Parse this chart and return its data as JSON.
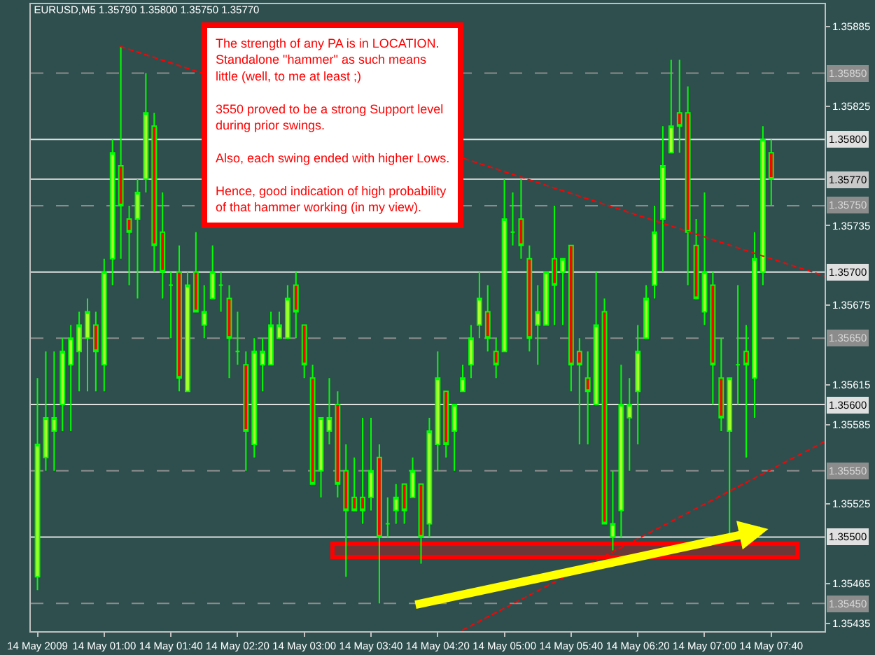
{
  "chart_data": {
    "type": "candlestick",
    "title": "EURUSD,M5 1.35790 1.35800 1.35750 1.35770",
    "x": [
      "2009-05-14T00:20",
      "2009-05-14T00:25",
      "2009-05-14T00:30",
      "2009-05-14T00:35",
      "2009-05-14T00:40",
      "2009-05-14T00:45",
      "2009-05-14T00:50",
      "2009-05-14T00:55",
      "2009-05-14T01:00",
      "2009-05-14T01:05",
      "2009-05-14T01:10",
      "2009-05-14T01:15",
      "2009-05-14T01:20",
      "2009-05-14T01:25",
      "2009-05-14T01:30",
      "2009-05-14T01:35",
      "2009-05-14T01:40",
      "2009-05-14T01:45",
      "2009-05-14T01:50",
      "2009-05-14T01:55",
      "2009-05-14T02:00",
      "2009-05-14T02:05",
      "2009-05-14T02:10",
      "2009-05-14T02:15",
      "2009-05-14T02:20",
      "2009-05-14T02:25",
      "2009-05-14T02:30",
      "2009-05-14T02:35",
      "2009-05-14T02:40",
      "2009-05-14T02:45",
      "2009-05-14T02:50",
      "2009-05-14T02:55",
      "2009-05-14T03:00",
      "2009-05-14T03:05",
      "2009-05-14T03:10",
      "2009-05-14T03:15",
      "2009-05-14T03:20",
      "2009-05-14T03:25",
      "2009-05-14T03:30",
      "2009-05-14T03:35",
      "2009-05-14T03:40",
      "2009-05-14T03:45",
      "2009-05-14T03:50",
      "2009-05-14T03:55",
      "2009-05-14T04:00",
      "2009-05-14T04:05",
      "2009-05-14T04:10",
      "2009-05-14T04:15",
      "2009-05-14T04:20",
      "2009-05-14T04:25",
      "2009-05-14T04:30",
      "2009-05-14T04:35",
      "2009-05-14T04:40",
      "2009-05-14T04:45",
      "2009-05-14T04:50",
      "2009-05-14T04:55",
      "2009-05-14T05:00",
      "2009-05-14T05:05",
      "2009-05-14T05:10",
      "2009-05-14T05:15",
      "2009-05-14T05:20",
      "2009-05-14T05:25",
      "2009-05-14T05:30",
      "2009-05-14T05:35",
      "2009-05-14T05:40",
      "2009-05-14T05:45",
      "2009-05-14T05:50",
      "2009-05-14T05:55",
      "2009-05-14T06:00",
      "2009-05-14T06:05",
      "2009-05-14T06:10",
      "2009-05-14T06:15",
      "2009-05-14T06:20",
      "2009-05-14T06:25",
      "2009-05-14T06:30",
      "2009-05-14T06:35",
      "2009-05-14T06:40",
      "2009-05-14T06:45",
      "2009-05-14T06:50",
      "2009-05-14T06:55",
      "2009-05-14T07:00",
      "2009-05-14T07:05",
      "2009-05-14T07:10",
      "2009-05-14T07:15",
      "2009-05-14T07:20",
      "2009-05-14T07:25",
      "2009-05-14T07:30",
      "2009-05-14T07:35",
      "2009-05-14T07:40"
    ],
    "series": [
      {
        "color": "#00ff00",
        "colors": [
          "#adff2f",
          "#adff2f",
          "#adff2f",
          "#adff2f",
          "#adff2f",
          "#adff2f",
          "#adff2f",
          "#ff0000",
          "#adff2f",
          "#adff2f",
          "#ff0000",
          "#ff0000",
          "#adff2f",
          "#adff2f",
          "#ff0000",
          "#ff0000",
          "#00ff00",
          "#ff0000",
          "#adff2f",
          "#ff0000",
          "#adff2f",
          "#adff2f",
          "#00ff00",
          "#ff0000",
          "#00ff00",
          "#ff0000",
          "#adff2f",
          "#adff2f",
          "#adff2f",
          "#adff2f",
          "#adff2f",
          "#ff0000",
          "#ff0000",
          "#ff0000",
          "#adff2f",
          "#adff2f",
          "#ff0000",
          "#ff0000",
          "#ff0000",
          "#ff0000",
          "#adff2f",
          "#ff0000",
          "#00ff00",
          "#adff2f",
          "#ff0000",
          "#adff2f",
          "#ff0000",
          "#adff2f",
          "#adff2f",
          "#ff0000",
          "#adff2f",
          "#adff2f",
          "#adff2f",
          "#adff2f",
          "#ff0000",
          "#ff0000",
          "#adff2f",
          "#00ff00",
          "#ff0000",
          "#ff0000",
          "#adff2f",
          "#adff2f",
          "#ff0000",
          "#adff2f",
          "#ff0000",
          "#ff0000",
          "#ff0000",
          "#adff2f",
          "#ff0000",
          "#adff2f",
          "#adff2f",
          "#adff2f",
          "#adff2f",
          "#adff2f",
          "#adff2f",
          "#adff2f",
          "#adff2f",
          "#ff0000",
          "#ff0000",
          "#ff0000",
          "#adff2f",
          "#ff0000",
          "#ff0000",
          "#adff2f",
          "#00ff00",
          "#ff0000",
          "#adff2f",
          "#adff2f",
          "#ff0000"
        ],
        "ohlc": [
          [
            1.3547,
            1.3562,
            1.3546,
            1.3557
          ],
          [
            1.3556,
            1.3564,
            1.3555,
            1.3559
          ],
          [
            1.3558,
            1.3564,
            1.3555,
            1.3559
          ],
          [
            1.356,
            1.3565,
            1.3558,
            1.3564
          ],
          [
            1.3563,
            1.3566,
            1.3558,
            1.3565
          ],
          [
            1.3564,
            1.3567,
            1.3561,
            1.3566
          ],
          [
            1.3565,
            1.3568,
            1.3561,
            1.3567
          ],
          [
            1.3566,
            1.3567,
            1.3561,
            1.3564
          ],
          [
            1.3563,
            1.3571,
            1.3561,
            1.357
          ],
          [
            1.3571,
            1.358,
            1.3569,
            1.3579
          ],
          [
            1.3578,
            1.3587,
            1.3571,
            1.3575
          ],
          [
            1.3574,
            1.3575,
            1.3569,
            1.3573
          ],
          [
            1.3574,
            1.3577,
            1.3568,
            1.3576
          ],
          [
            1.3577,
            1.3585,
            1.3576,
            1.3582
          ],
          [
            1.3581,
            1.3582,
            1.357,
            1.3572
          ],
          [
            1.3573,
            1.3576,
            1.3568,
            1.357
          ],
          [
            1.3569,
            1.357,
            1.3565,
            1.3569
          ],
          [
            1.357,
            1.3572,
            1.3561,
            1.3562
          ],
          [
            1.3561,
            1.357,
            1.3561,
            1.3569
          ],
          [
            1.357,
            1.3573,
            1.3567,
            1.3567
          ],
          [
            1.3566,
            1.3569,
            1.3565,
            1.3567
          ],
          [
            1.3568,
            1.3572,
            1.3568,
            1.357
          ],
          [
            1.3569,
            1.357,
            1.3567,
            1.3569
          ],
          [
            1.3568,
            1.3569,
            1.3562,
            1.3565
          ],
          [
            1.3564,
            1.3567,
            1.3563,
            1.3564
          ],
          [
            1.3563,
            1.3564,
            1.3555,
            1.3558
          ],
          [
            1.3557,
            1.3565,
            1.3556,
            1.3564
          ],
          [
            1.3563,
            1.3565,
            1.3561,
            1.3564
          ],
          [
            1.3563,
            1.3567,
            1.3563,
            1.3566
          ],
          [
            1.3565,
            1.3567,
            1.3565,
            1.3566
          ],
          [
            1.3565,
            1.3569,
            1.3565,
            1.3568
          ],
          [
            1.3569,
            1.357,
            1.3565,
            1.3567
          ],
          [
            1.3566,
            1.3566,
            1.3562,
            1.3563
          ],
          [
            1.3562,
            1.3563,
            1.3554,
            1.3554
          ],
          [
            1.3555,
            1.3559,
            1.3553,
            1.3559
          ],
          [
            1.3558,
            1.3562,
            1.3557,
            1.3559
          ],
          [
            1.356,
            1.3561,
            1.3553,
            1.3554
          ],
          [
            1.3555,
            1.3557,
            1.3547,
            1.3552
          ],
          [
            1.3553,
            1.3556,
            1.3552,
            1.3552
          ],
          [
            1.3553,
            1.3559,
            1.3551,
            1.3552
          ],
          [
            1.3553,
            1.3559,
            1.3552,
            1.3555
          ],
          [
            1.3556,
            1.3557,
            1.3545,
            1.355
          ],
          [
            1.3551,
            1.3553,
            1.355,
            1.3551
          ],
          [
            1.3552,
            1.3554,
            1.3551,
            1.3553
          ],
          [
            1.3554,
            1.3554,
            1.3551,
            1.3552
          ],
          [
            1.3553,
            1.3556,
            1.3553,
            1.3555
          ],
          [
            1.3554,
            1.3554,
            1.3548,
            1.355
          ],
          [
            1.3551,
            1.3559,
            1.355,
            1.3558
          ],
          [
            1.3557,
            1.3564,
            1.3555,
            1.3562
          ],
          [
            1.3561,
            1.3561,
            1.3556,
            1.3557
          ],
          [
            1.3558,
            1.356,
            1.3555,
            1.356
          ],
          [
            1.3561,
            1.3563,
            1.3561,
            1.3562
          ],
          [
            1.3563,
            1.3566,
            1.3562,
            1.3565
          ],
          [
            1.3566,
            1.357,
            1.3565,
            1.3568
          ],
          [
            1.3567,
            1.3569,
            1.3564,
            1.3565
          ],
          [
            1.3564,
            1.3565,
            1.3562,
            1.3563
          ],
          [
            1.3564,
            1.3577,
            1.3564,
            1.3574
          ],
          [
            1.3573,
            1.3576,
            1.3572,
            1.3573
          ],
          [
            1.3574,
            1.3577,
            1.3571,
            1.3572
          ],
          [
            1.3571,
            1.3572,
            1.3564,
            1.3565
          ],
          [
            1.3566,
            1.3569,
            1.3563,
            1.3567
          ],
          [
            1.3566,
            1.357,
            1.3566,
            1.357
          ],
          [
            1.3571,
            1.3575,
            1.3566,
            1.3569
          ],
          [
            1.357,
            1.3571,
            1.3566,
            1.3571
          ],
          [
            1.3572,
            1.3572,
            1.3561,
            1.3563
          ],
          [
            1.3564,
            1.3565,
            1.3557,
            1.3563
          ],
          [
            1.3562,
            1.3564,
            1.3557,
            1.3561
          ],
          [
            1.356,
            1.357,
            1.356,
            1.3566
          ],
          [
            1.3567,
            1.3568,
            1.3551,
            1.3551
          ],
          [
            1.355,
            1.3555,
            1.3549,
            1.3551
          ],
          [
            1.3552,
            1.3563,
            1.355,
            1.356
          ],
          [
            1.3559,
            1.3562,
            1.3555,
            1.356
          ],
          [
            1.3561,
            1.3566,
            1.3557,
            1.3564
          ],
          [
            1.3565,
            1.3569,
            1.3565,
            1.3568
          ],
          [
            1.3569,
            1.3575,
            1.3568,
            1.3573
          ],
          [
            1.3574,
            1.3581,
            1.357,
            1.3578
          ],
          [
            1.3579,
            1.3586,
            1.3579,
            1.3581
          ],
          [
            1.3582,
            1.3586,
            1.3579,
            1.3581
          ],
          [
            1.3582,
            1.3584,
            1.3569,
            1.3573
          ],
          [
            1.3572,
            1.3574,
            1.3568,
            1.3568
          ],
          [
            1.3567,
            1.3576,
            1.3566,
            1.357
          ],
          [
            1.3569,
            1.357,
            1.356,
            1.3563
          ],
          [
            1.3562,
            1.3565,
            1.3558,
            1.3559
          ],
          [
            1.3558,
            1.3562,
            1.355,
            1.3562
          ],
          [
            1.3563,
            1.3569,
            1.356,
            1.3563
          ],
          [
            1.3564,
            1.3566,
            1.3556,
            1.3563
          ],
          [
            1.3562,
            1.3573,
            1.3559,
            1.3571
          ],
          [
            1.357,
            1.3581,
            1.3569,
            1.358
          ],
          [
            1.3579,
            1.358,
            1.3575,
            1.3577
          ]
        ]
      },
      {
        "type": "line",
        "color": "#ff0000",
        "line_style": "dotted",
        "x": [
          "2009-05-14T01:10",
          "2009-05-14T07:40",
          "2009-05-14T08:12"
        ],
        "values": [
          1.3587,
          1.3571,
          1.35697
        ]
      },
      {
        "type": "line",
        "color": "#ff0000",
        "line_style": "dotted",
        "x": [
          "2009-05-14T04:35",
          "2009-05-14T08:12"
        ],
        "values": [
          1.3543,
          1.35572
        ]
      }
    ],
    "xlim": [
      "2009-05-14T00:16",
      "2009-05-14T08:12"
    ],
    "xticks": [
      {
        "value": "2009-05-14T00:20",
        "label": "14 May 2009"
      },
      {
        "value": "2009-05-14T01:00",
        "label": "14 May 01:00"
      },
      {
        "value": "2009-05-14T01:40",
        "label": "14 May 01:40"
      },
      {
        "value": "2009-05-14T02:20",
        "label": "14 May 02:20"
      },
      {
        "value": "2009-05-14T03:00",
        "label": "14 May 03:00"
      },
      {
        "value": "2009-05-14T03:40",
        "label": "14 May 03:40"
      },
      {
        "value": "2009-05-14T04:20",
        "label": "14 May 04:20"
      },
      {
        "value": "2009-05-14T05:00",
        "label": "14 May 05:00"
      },
      {
        "value": "2009-05-14T05:40",
        "label": "14 May 05:40"
      },
      {
        "value": "2009-05-14T06:20",
        "label": "14 May 06:20"
      },
      {
        "value": "2009-05-14T07:00",
        "label": "14 May 07:00"
      },
      {
        "value": "2009-05-14T07:40",
        "label": "14 May 07:40"
      }
    ],
    "ylim": [
      1.35429,
      1.35902
    ],
    "yticks": [
      1.35885,
      1.35825,
      1.35735,
      1.35675,
      1.35615,
      1.35585,
      1.35525,
      1.35465,
      1.35435
    ],
    "ref_lines": [
      {
        "axis": "y",
        "value": 1.3585,
        "label": "1.35850",
        "color": "#8c8c8c",
        "line_style": "dashed"
      },
      {
        "axis": "y",
        "value": 1.358,
        "label": "1.35800",
        "color": "#e0e0e0",
        "line_style": "solid"
      },
      {
        "axis": "y",
        "value": 1.3577,
        "label": "1.35770",
        "color": "#c8c8c8",
        "line_style": "solid"
      },
      {
        "axis": "y",
        "value": 1.3575,
        "label": "1.35750",
        "color": "#8c8c8c",
        "line_style": "dashed"
      },
      {
        "axis": "y",
        "value": 1.357,
        "label": "1.35700",
        "color": "#e0e0e0",
        "line_style": "solid"
      },
      {
        "axis": "y",
        "value": 1.3565,
        "label": "1.35650",
        "color": "#8c8c8c",
        "line_style": "dashed"
      },
      {
        "axis": "y",
        "value": 1.356,
        "label": "1.35600",
        "color": "#e0e0e0",
        "line_style": "solid"
      },
      {
        "axis": "y",
        "value": 1.3555,
        "label": "1.35550",
        "color": "#8c8c8c",
        "line_style": "dashed"
      },
      {
        "axis": "y",
        "value": 1.355,
        "label": "1.35500",
        "color": "#e0e0e0",
        "line_style": "solid"
      },
      {
        "axis": "y",
        "value": 1.3545,
        "label": "1.35450",
        "color": "#8c8c8c",
        "line_style": "dashed"
      }
    ],
    "bands": [
      {
        "axis": "y",
        "from": 1.35485,
        "to": 1.35495,
        "color": "#ff0000"
      }
    ],
    "annotations": [
      "The strength of any PA is in LOCATION.\nStandalone \"hammer\" as such means\nlittle (well, to me at least ;)\n\n3550 proved to be a strong Support level\nduring prior swings.\n\nAlso, each swing ended with higher Lows.\n\nHence, good indication of high probability\nof that hammer working (in my view)."
    ],
    "grid": false
  }
}
